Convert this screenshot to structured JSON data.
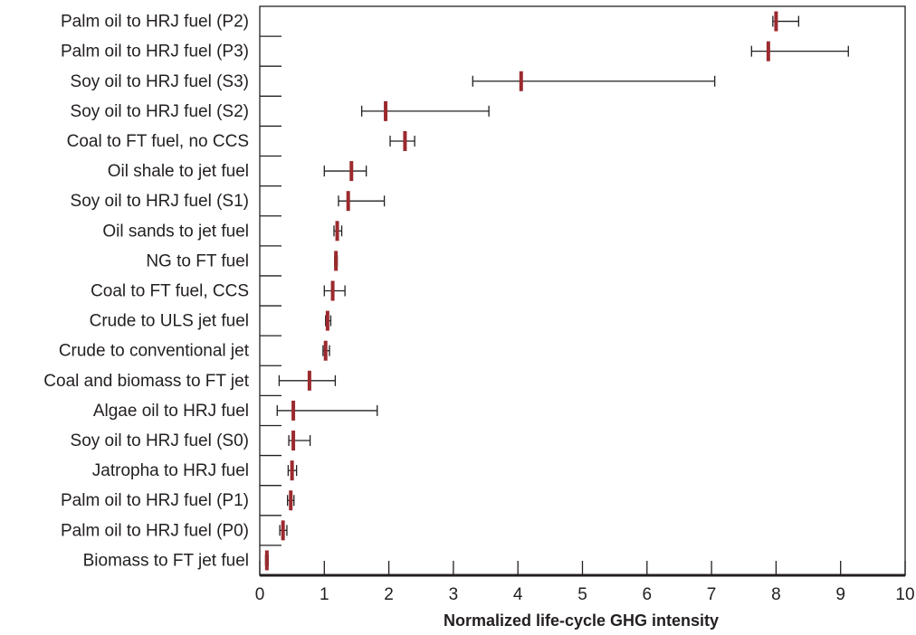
{
  "chart_data": {
    "type": "range",
    "xlabel": "Normalized life-cycle GHG intensity",
    "xlim": [
      0,
      10
    ],
    "xticks": [
      0,
      1,
      2,
      3,
      4,
      5,
      6,
      7,
      8,
      9,
      10
    ],
    "marker_color": "#9b2a2e",
    "grid": false,
    "rows": [
      {
        "label": "Palm oil to HRJ fuel (P2)",
        "value": 8.0,
        "low": 7.95,
        "high": 8.35
      },
      {
        "label": "Palm oil to HRJ fuel (P3)",
        "value": 7.88,
        "low": 7.62,
        "high": 9.12
      },
      {
        "label": "Soy oil to HRJ fuel (S3)",
        "value": 4.05,
        "low": 3.3,
        "high": 7.05
      },
      {
        "label": "Soy oil to HRJ fuel (S2)",
        "value": 1.95,
        "low": 1.58,
        "high": 3.55
      },
      {
        "label": "Coal to FT fuel, no CCS",
        "value": 2.25,
        "low": 2.02,
        "high": 2.4
      },
      {
        "label": "Oil shale to jet fuel",
        "value": 1.42,
        "low": 1.0,
        "high": 1.65
      },
      {
        "label": "Soy oil to HRJ fuel (S1)",
        "value": 1.37,
        "low": 1.22,
        "high": 1.93
      },
      {
        "label": "Oil sands to jet fuel",
        "value": 1.2,
        "low": 1.15,
        "high": 1.27
      },
      {
        "label": "NG to FT fuel",
        "value": 1.18,
        "low": 1.16,
        "high": 1.2
      },
      {
        "label": "Coal to FT fuel, CCS",
        "value": 1.13,
        "low": 1.0,
        "high": 1.32
      },
      {
        "label": "Crude to ULS jet fuel",
        "value": 1.05,
        "low": 1.02,
        "high": 1.1
      },
      {
        "label": "Crude to conventional jet",
        "value": 1.02,
        "low": 0.98,
        "high": 1.08
      },
      {
        "label": "Coal and biomass to FT jet",
        "value": 0.77,
        "low": 0.3,
        "high": 1.17
      },
      {
        "label": "Algae oil to HRJ fuel",
        "value": 0.52,
        "low": 0.27,
        "high": 1.82
      },
      {
        "label": "Soy oil to HRJ fuel (S0)",
        "value": 0.52,
        "low": 0.45,
        "high": 0.78
      },
      {
        "label": "Jatropha to HRJ fuel",
        "value": 0.5,
        "low": 0.44,
        "high": 0.57
      },
      {
        "label": "Palm oil to HRJ fuel (P1)",
        "value": 0.48,
        "low": 0.43,
        "high": 0.53
      },
      {
        "label": "Palm oil to HRJ fuel (P0)",
        "value": 0.36,
        "low": 0.31,
        "high": 0.42
      },
      {
        "label": "Biomass to FT jet fuel",
        "value": 0.11,
        "low": 0.09,
        "high": 0.13
      }
    ]
  }
}
